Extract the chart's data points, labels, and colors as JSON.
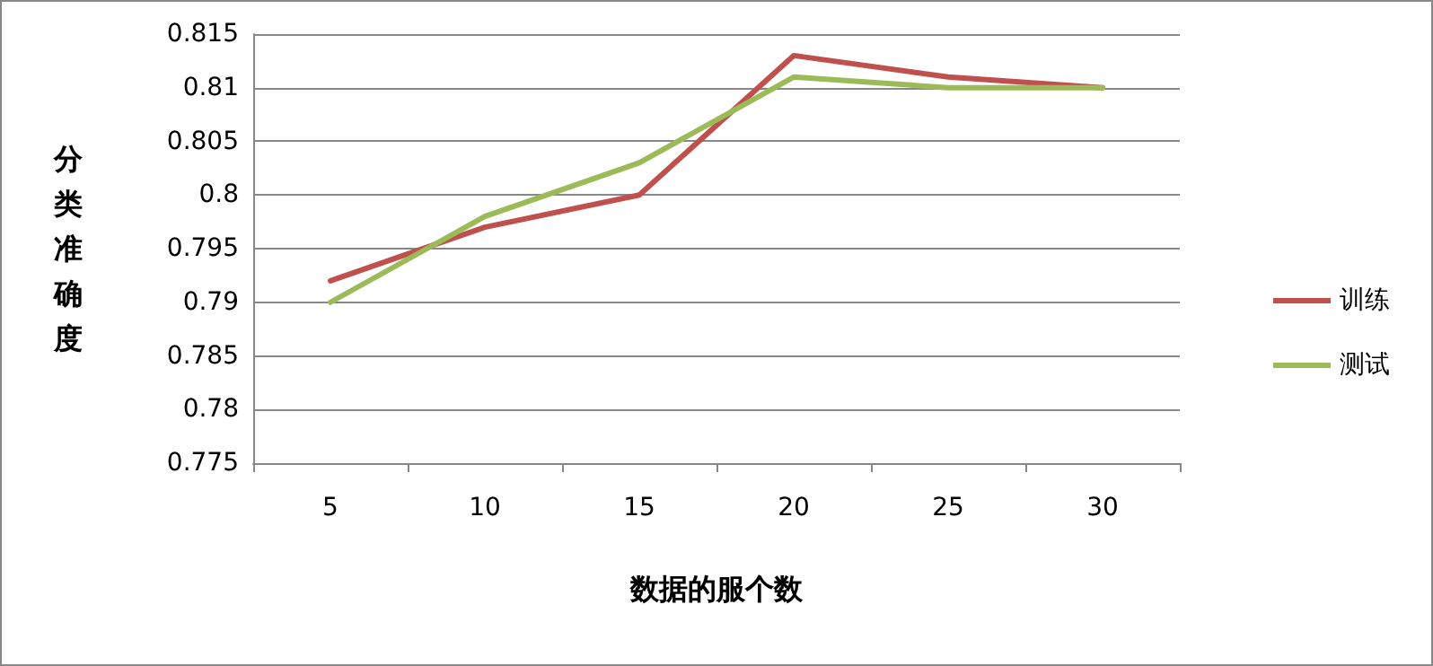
{
  "chart_data": {
    "type": "line",
    "xlabel": "数据的服个数",
    "ylabel": "分类准确度",
    "categories": [
      "5",
      "10",
      "15",
      "20",
      "25",
      "30"
    ],
    "series": [
      {
        "name": "训练",
        "color": "#c0504d",
        "values": [
          0.792,
          0.797,
          0.8,
          0.813,
          0.811,
          0.81
        ]
      },
      {
        "name": "测试",
        "color": "#9bbb59",
        "values": [
          0.79,
          0.798,
          0.803,
          0.811,
          0.81,
          0.81
        ]
      }
    ],
    "ylim": [
      0.775,
      0.815
    ],
    "yticks": [
      0.775,
      0.78,
      0.785,
      0.79,
      0.795,
      0.8,
      0.805,
      0.81,
      0.815
    ],
    "grid": "y",
    "legend": "right",
    "marker": "none",
    "line_style": "solid"
  }
}
